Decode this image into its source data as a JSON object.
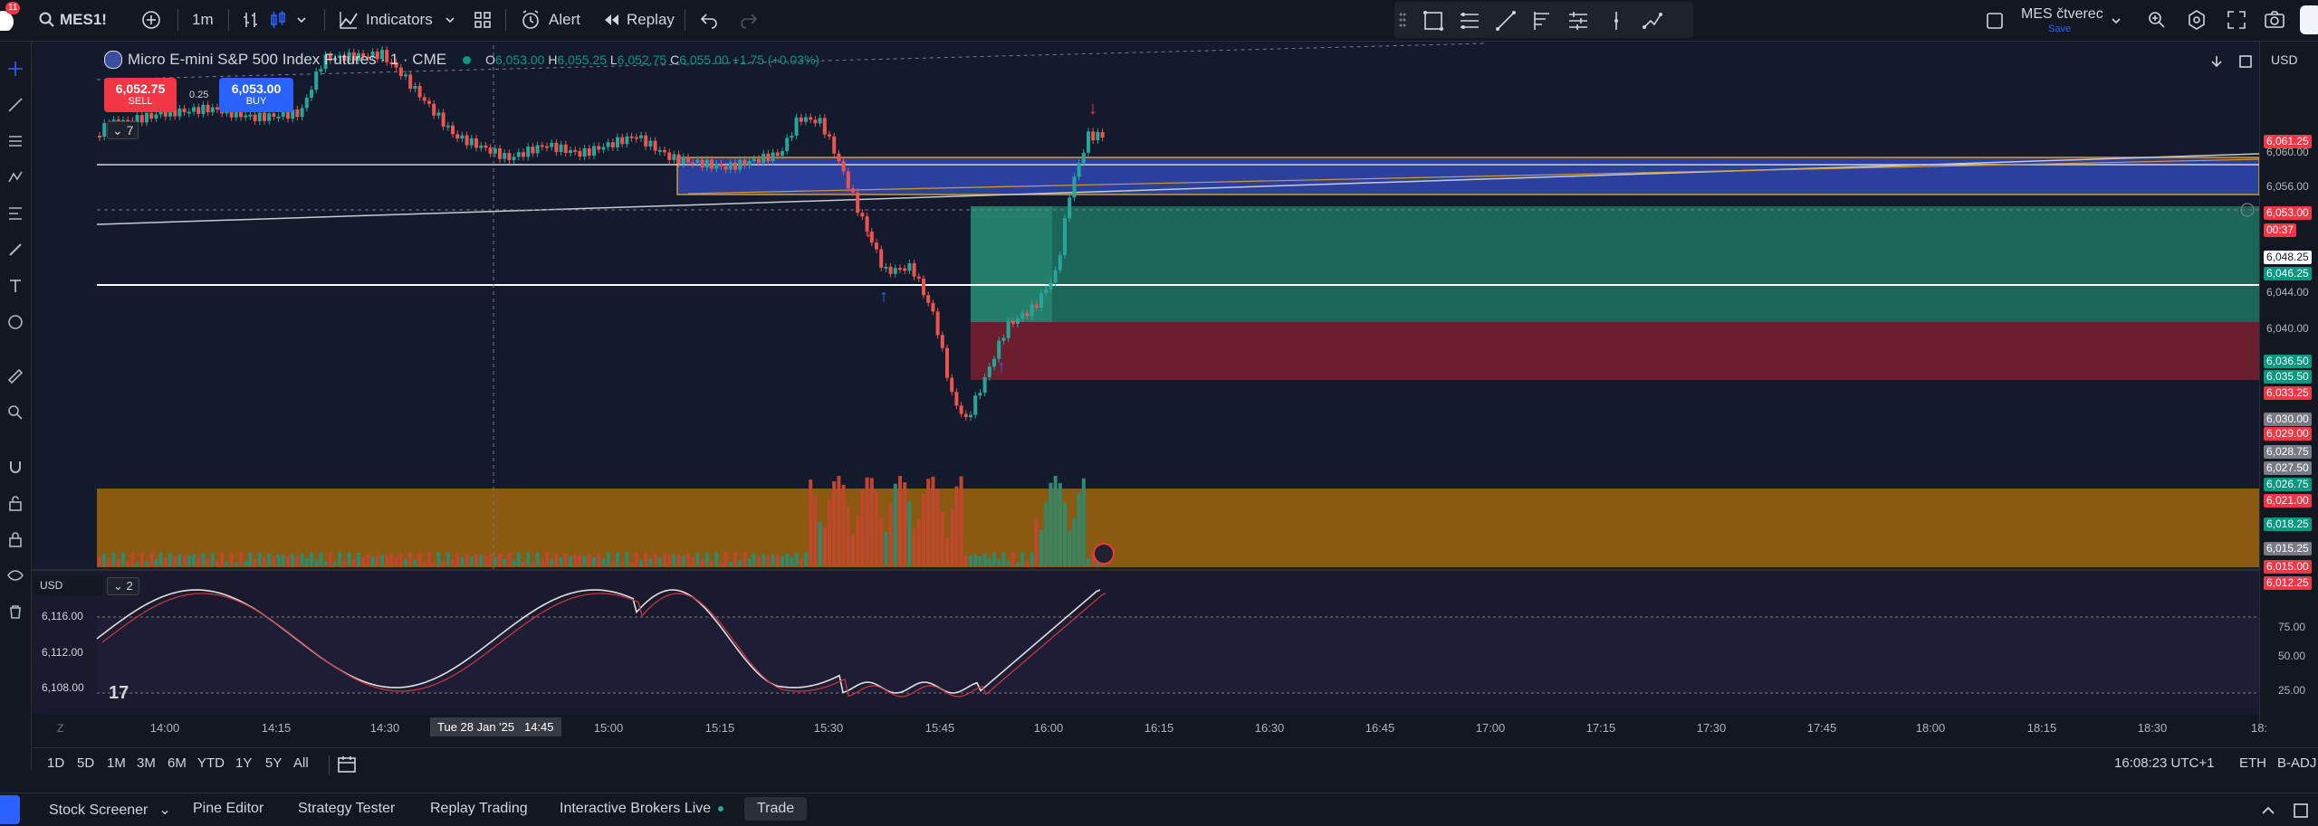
{
  "topbar": {
    "notification_count": "11",
    "symbol": "MES1!",
    "interval": "1m",
    "indicators_label": "Indicators",
    "alert_label": "Alert",
    "replay_label": "Replay",
    "layout_name": "MES čtverec",
    "save_label": "Save"
  },
  "legend": {
    "title": "Micro E-mini S&P 500 Index Futures · 1 · CME",
    "open_key": "O",
    "open": "6,053.00",
    "high_key": "H",
    "high": "6,055.25",
    "low_key": "L",
    "low": "6,052.75",
    "close_key": "C",
    "close": "6,055.00",
    "change": "+1.75 (+0.03%)",
    "indicator_count": "7"
  },
  "trade": {
    "sell_price": "6,052.75",
    "sell_label": "SELL",
    "spread": "0.25",
    "buy_price": "6,053.00",
    "buy_label": "BUY"
  },
  "price_axis": {
    "currency": "USD",
    "labels": [
      {
        "text": "6,061.25",
        "color": "#f23645"
      },
      {
        "text": "6,060.00",
        "color": ""
      },
      {
        "text": "6,056.00",
        "color": ""
      },
      {
        "text": "6,053.00",
        "color": "#f23645"
      },
      {
        "text": "00:37",
        "color": "#f23645"
      },
      {
        "text": "6,048.25",
        "color": "#ffffff"
      },
      {
        "text": "6,046.25",
        "color": "#089981"
      },
      {
        "text": "6,044.00",
        "color": ""
      },
      {
        "text": "6,040.00",
        "color": ""
      },
      {
        "text": "6,036.50",
        "color": "#089981"
      },
      {
        "text": "6,035.50",
        "color": "#089981"
      },
      {
        "text": "6,033.25",
        "color": "#f23645"
      },
      {
        "text": "6,030.00",
        "color": "#787b86"
      },
      {
        "text": "6,029.00",
        "color": "#f23645"
      },
      {
        "text": "6,028.75",
        "color": "#787b86"
      },
      {
        "text": "6,027.50",
        "color": "#787b86"
      },
      {
        "text": "6,026.75",
        "color": "#089981"
      },
      {
        "text": "6,021.00",
        "color": "#f23645"
      },
      {
        "text": "6,018.25",
        "color": "#089981"
      },
      {
        "text": "6,015.25",
        "color": "#787b86"
      },
      {
        "text": "6,015.00",
        "color": "#f23645"
      },
      {
        "text": "6,012.25",
        "color": "#f23645"
      }
    ]
  },
  "oscillator": {
    "currency": "USD",
    "count": "2",
    "left_labels": [
      "6,116.00",
      "6,112.00",
      "6,108.00"
    ],
    "right_labels": [
      "75.00",
      "50.00",
      "25.00"
    ]
  },
  "time_axis": {
    "labels": [
      "14:00",
      "14:15",
      "14:30",
      "15:00",
      "15:15",
      "15:30",
      "15:45",
      "16:00",
      "16:15",
      "16:30",
      "16:45",
      "17:00",
      "17:15",
      "17:30",
      "17:45",
      "18:00",
      "18:15",
      "18:30",
      "18:"
    ],
    "crosshair_label": "Tue 28 Jan '25",
    "crosshair_time": "14:45"
  },
  "range_bar": {
    "ranges": [
      "1D",
      "5D",
      "1M",
      "3M",
      "6M",
      "YTD",
      "1Y",
      "5Y",
      "All"
    ],
    "clock": "16:08:23 UTC+1",
    "session": "ETH",
    "adjustment": "B-ADJ"
  },
  "bottom_bar": {
    "tabs": [
      "Stock Screener",
      "Pine Editor",
      "Strategy Tester",
      "Replay Trading",
      "Interactive Brokers Live",
      "Trade"
    ]
  },
  "colors": {
    "background": "#131722",
    "bull": "#26a69a",
    "bear": "#ef5350",
    "zone_blue": "#2a3f9e",
    "zone_green": "#1e7d6a",
    "zone_red": "#6b1f2e",
    "volume_zone": "#8a5a10"
  },
  "icons": [
    "apple-icon",
    "search-icon",
    "plus-circle-icon",
    "bar-style-icon",
    "candle-style-icon",
    "indicators-icon",
    "templates-icon",
    "alert-icon",
    "replay-icon",
    "undo-icon",
    "redo-icon",
    "crosshair-icon",
    "trend-line-icon",
    "fib-icon",
    "pattern-icon",
    "ruler-icon",
    "zoom-icon",
    "magnet-icon",
    "lock-icon",
    "trash-icon",
    "settings-icon",
    "camera-icon",
    "fullscreen-icon",
    "calendar-icon",
    "star-icon",
    "collapse-icon"
  ]
}
